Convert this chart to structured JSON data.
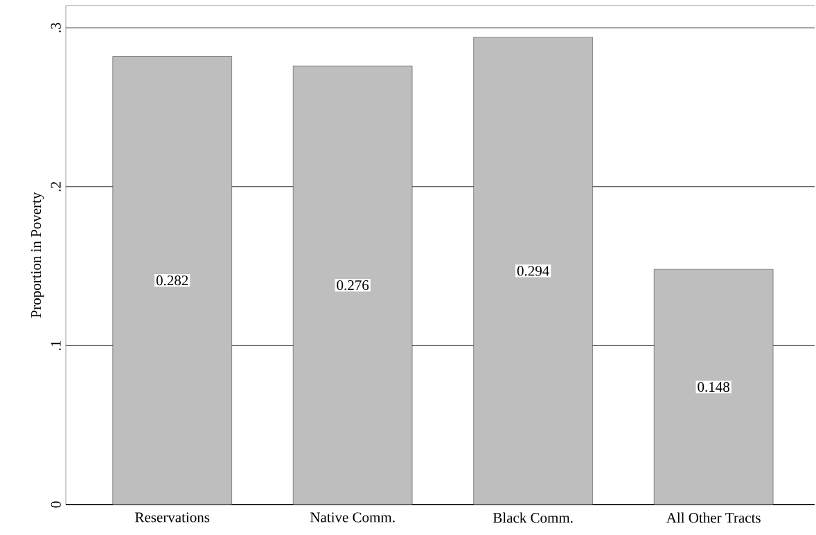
{
  "chart_data": {
    "type": "bar",
    "ylabel": "Proportion in Poverty",
    "categories": [
      "Reservations",
      "Native Comm.",
      "Black Comm.",
      "All Other Tracts"
    ],
    "values": [
      0.282,
      0.276,
      0.294,
      0.148
    ],
    "value_labels": [
      "0.282",
      "0.276",
      "0.294",
      "0.148"
    ],
    "color": "#bebebe",
    "ylim": [
      0,
      0.314
    ],
    "yticks": [
      0,
      {
        "value": 0.1,
        "label": ".1"
      },
      {
        "value": 0.2,
        "label": ".2"
      },
      {
        "value": 0.3,
        "label": ".3"
      }
    ],
    "grid": "y"
  }
}
